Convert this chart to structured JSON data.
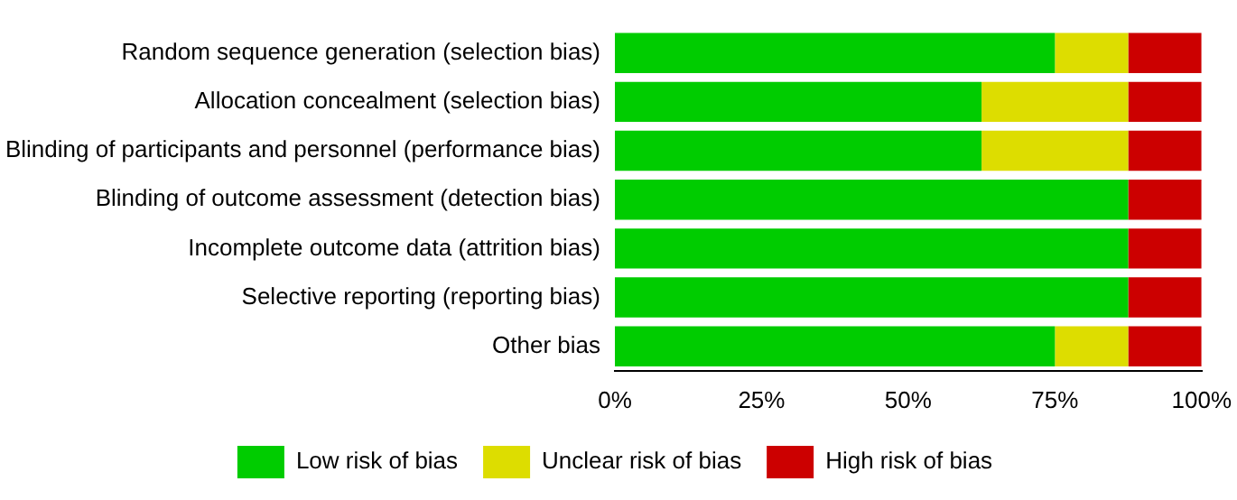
{
  "chart_data": {
    "type": "bar",
    "orientation": "horizontal",
    "stacked": true,
    "categories": [
      "Random sequence generation (selection bias)",
      "Allocation concealment (selection bias)",
      "Blinding of participants and personnel (performance bias)",
      "Blinding of outcome assessment (detection bias)",
      "Incomplete outcome data (attrition bias)",
      "Selective reporting (reporting bias)",
      "Other bias"
    ],
    "series": [
      {
        "name": "Low risk of bias",
        "color": "#00cc00",
        "values": [
          75,
          62.5,
          62.5,
          87.5,
          87.5,
          87.5,
          75
        ]
      },
      {
        "name": "Unclear risk of bias",
        "color": "#dddd00",
        "values": [
          12.5,
          25,
          25,
          0,
          0,
          0,
          12.5
        ]
      },
      {
        "name": "High risk of bias",
        "color": "#cc0000",
        "values": [
          12.5,
          12.5,
          12.5,
          12.5,
          12.5,
          12.5,
          12.5
        ]
      }
    ],
    "xlim": [
      0,
      100
    ],
    "xticks": [
      {
        "value": 0,
        "label": "0%"
      },
      {
        "value": 25,
        "label": "25%"
      },
      {
        "value": 50,
        "label": "50%"
      },
      {
        "value": 75,
        "label": "75%"
      },
      {
        "value": 100,
        "label": "100%"
      }
    ],
    "grid": false,
    "legend": "bottom"
  }
}
